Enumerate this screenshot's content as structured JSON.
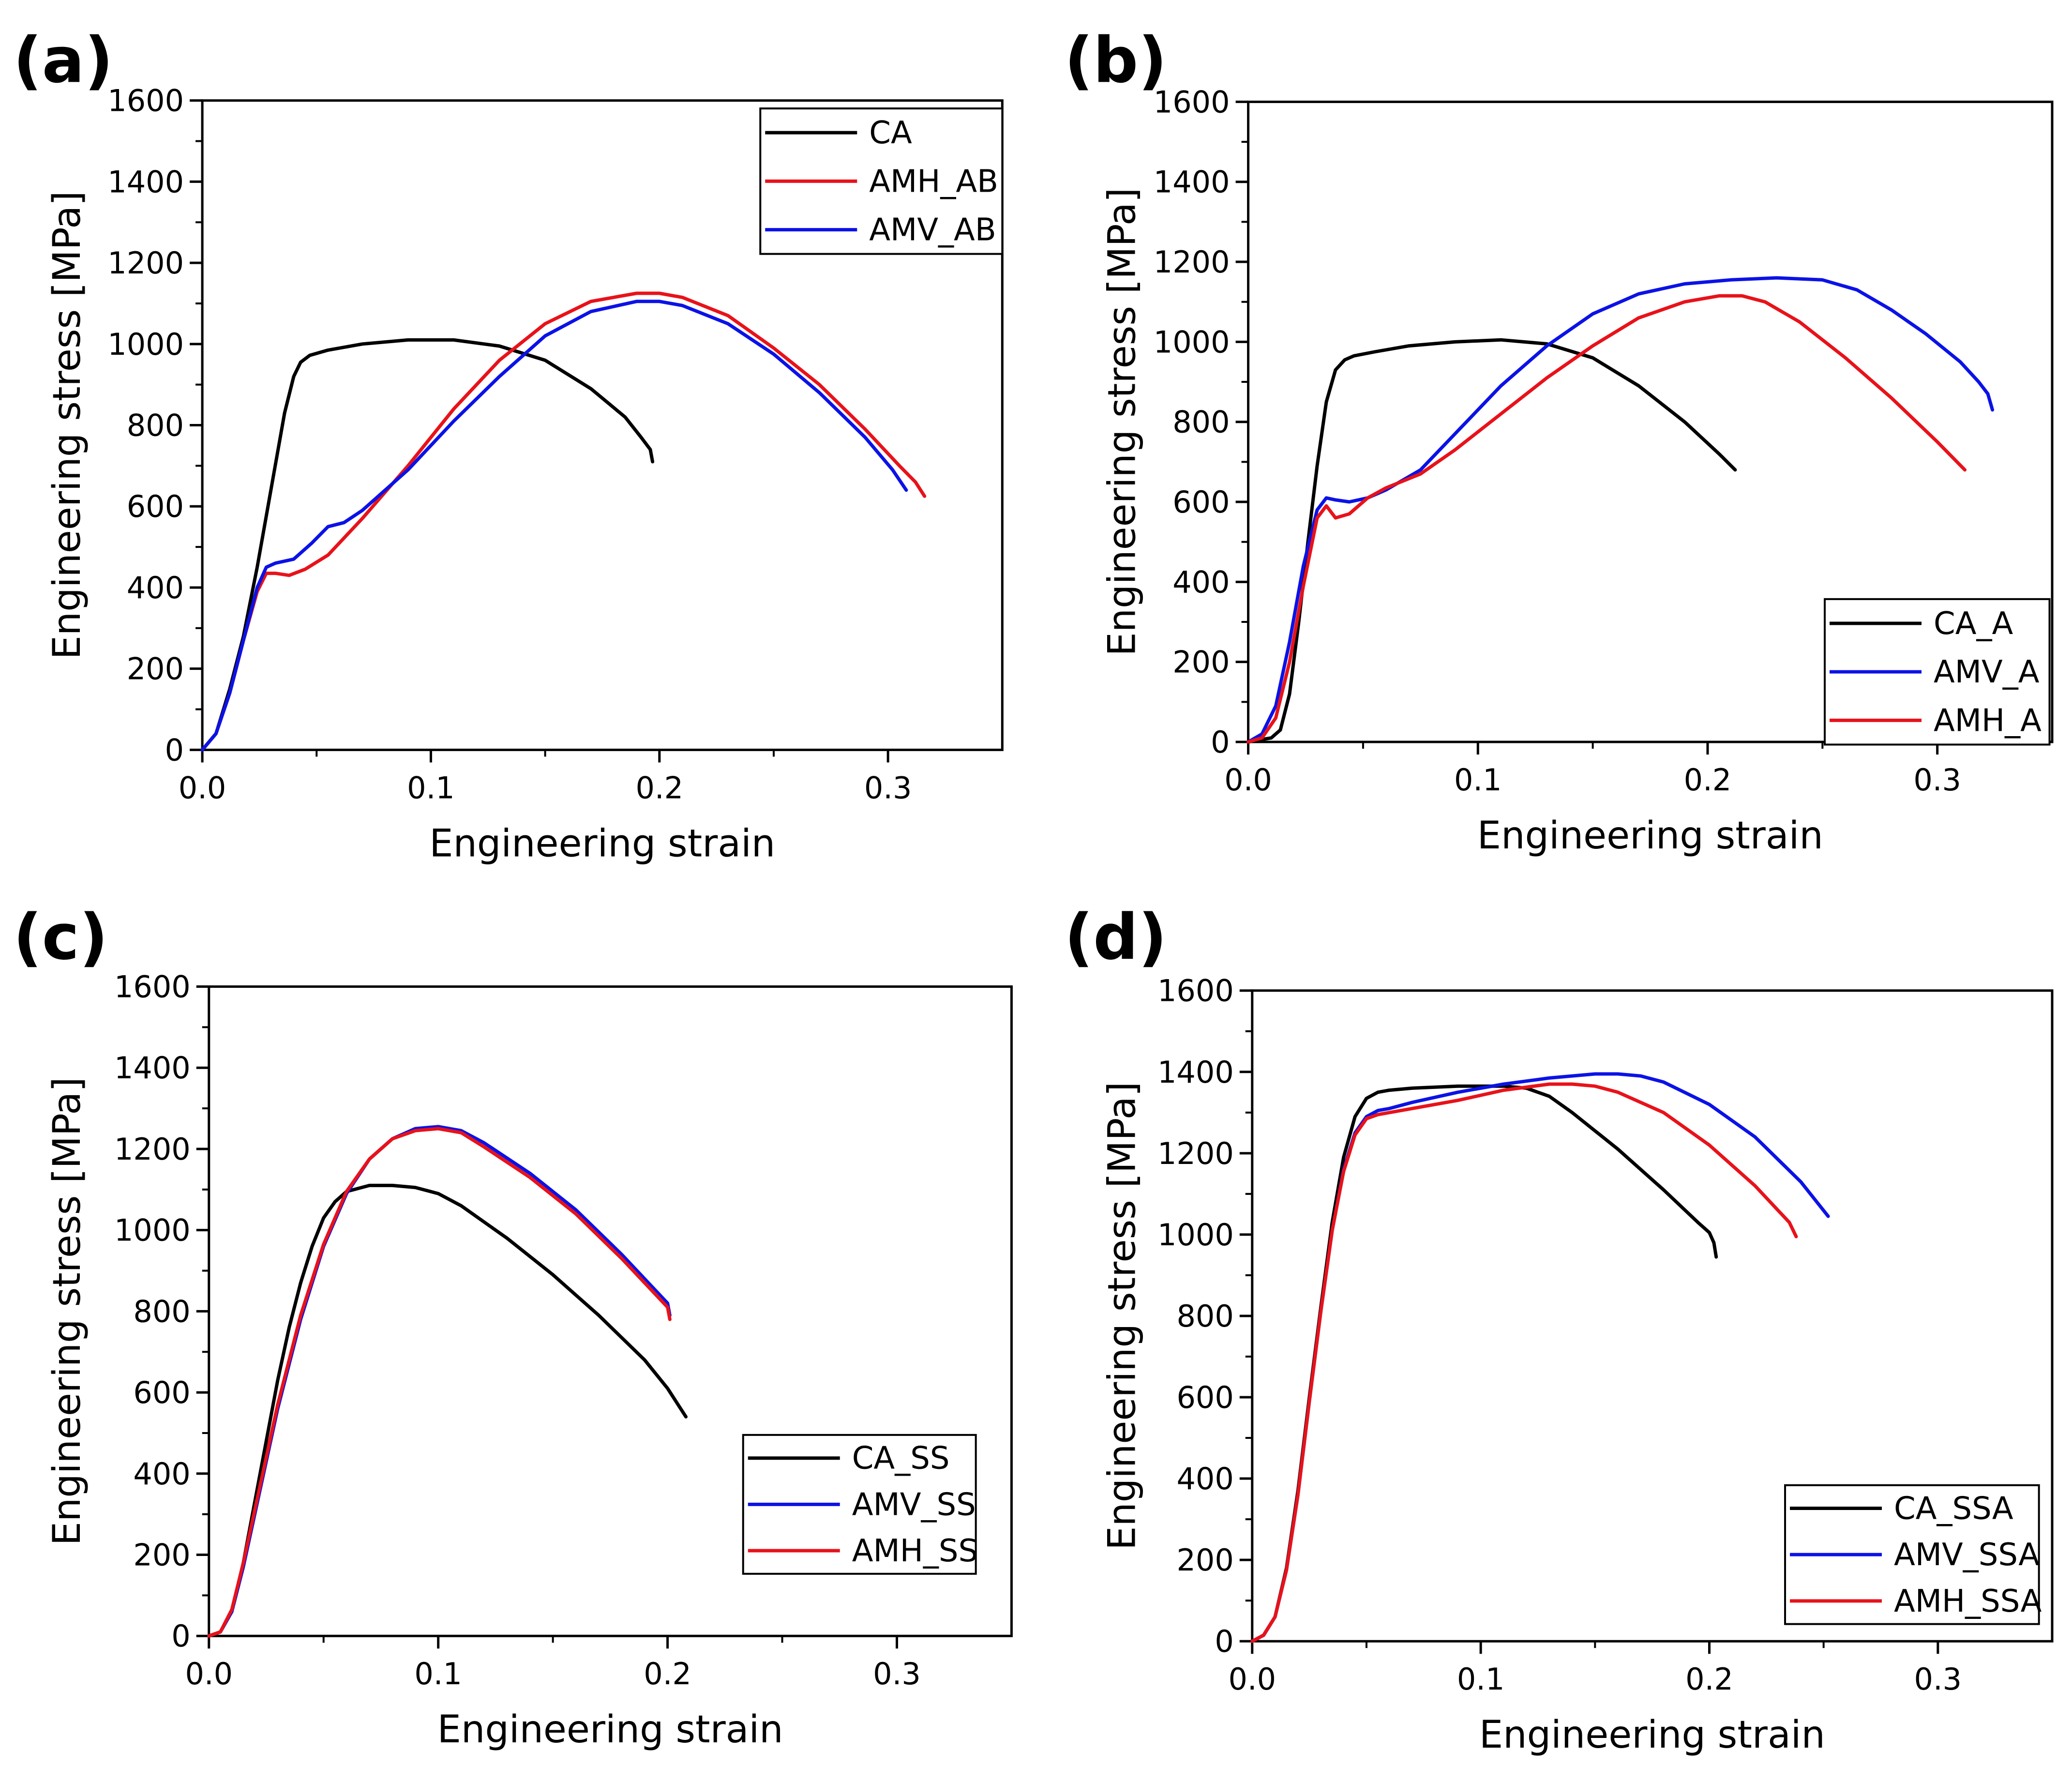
{
  "chart_data": [
    {
      "panel": "(a)",
      "type": "line",
      "xlabel": "Engineering strain",
      "ylabel": "Engineering stress [MPa]",
      "xlim": [
        0,
        0.35
      ],
      "ylim": [
        0,
        1600
      ],
      "xticks": [
        "0.0",
        "0.1",
        "0.2",
        "0.3"
      ],
      "yticks": [
        "0",
        "200",
        "400",
        "600",
        "800",
        "1000",
        "1200",
        "1400",
        "1600"
      ],
      "legend_position": "top-right",
      "series": [
        {
          "name": "CA",
          "color": "#000000",
          "x": [
            0,
            0.006,
            0.012,
            0.018,
            0.024,
            0.03,
            0.036,
            0.04,
            0.043,
            0.047,
            0.055,
            0.07,
            0.09,
            0.11,
            0.13,
            0.15,
            0.17,
            0.185,
            0.192,
            0.196,
            0.197
          ],
          "y": [
            0,
            40,
            150,
            280,
            450,
            640,
            830,
            920,
            955,
            972,
            985,
            1000,
            1010,
            1010,
            995,
            960,
            890,
            820,
            770,
            740,
            710
          ]
        },
        {
          "name": "AMH_AB",
          "color": "#e8121a",
          "x": [
            0,
            0.006,
            0.012,
            0.018,
            0.024,
            0.028,
            0.032,
            0.038,
            0.045,
            0.055,
            0.07,
            0.09,
            0.11,
            0.13,
            0.15,
            0.17,
            0.19,
            0.2,
            0.21,
            0.23,
            0.25,
            0.27,
            0.29,
            0.305,
            0.312,
            0.316
          ],
          "y": [
            0,
            40,
            140,
            270,
            390,
            435,
            435,
            430,
            445,
            480,
            570,
            700,
            840,
            960,
            1050,
            1105,
            1125,
            1125,
            1115,
            1070,
            990,
            900,
            790,
            700,
            660,
            625
          ]
        },
        {
          "name": "AMV_AB",
          "color": "#0b12e6",
          "x": [
            0,
            0.006,
            0.012,
            0.018,
            0.024,
            0.028,
            0.032,
            0.04,
            0.048,
            0.055,
            0.062,
            0.07,
            0.09,
            0.11,
            0.13,
            0.15,
            0.17,
            0.19,
            0.2,
            0.21,
            0.23,
            0.25,
            0.27,
            0.29,
            0.302,
            0.308
          ],
          "y": [
            0,
            40,
            140,
            270,
            400,
            450,
            460,
            470,
            510,
            550,
            560,
            590,
            690,
            810,
            920,
            1020,
            1080,
            1105,
            1105,
            1095,
            1050,
            975,
            880,
            770,
            690,
            640
          ]
        }
      ]
    },
    {
      "panel": "(b)",
      "type": "line",
      "xlabel": "Engineering strain",
      "ylabel": "Engineering stress [MPa]",
      "xlim": [
        0,
        0.35
      ],
      "ylim": [
        0,
        1600
      ],
      "xticks": [
        "0.0",
        "0.1",
        "0.2",
        "0.3"
      ],
      "yticks": [
        "0",
        "200",
        "400",
        "600",
        "800",
        "1000",
        "1200",
        "1400",
        "1600"
      ],
      "legend_position": "bottom-right",
      "series": [
        {
          "name": "CA_A",
          "color": "#000000",
          "x": [
            0,
            0.01,
            0.014,
            0.018,
            0.022,
            0.026,
            0.03,
            0.034,
            0.038,
            0.042,
            0.046,
            0.055,
            0.07,
            0.09,
            0.11,
            0.13,
            0.15,
            0.17,
            0.19,
            0.205,
            0.212
          ],
          "y": [
            0,
            10,
            30,
            120,
            300,
            500,
            690,
            850,
            930,
            955,
            965,
            975,
            990,
            1000,
            1005,
            995,
            960,
            890,
            800,
            720,
            680
          ]
        },
        {
          "name": "AMV_A",
          "color": "#0b12e6",
          "x": [
            0,
            0.006,
            0.012,
            0.018,
            0.024,
            0.03,
            0.034,
            0.038,
            0.044,
            0.052,
            0.06,
            0.075,
            0.09,
            0.11,
            0.13,
            0.15,
            0.17,
            0.19,
            0.21,
            0.23,
            0.25,
            0.265,
            0.28,
            0.295,
            0.31,
            0.318,
            0.322,
            0.324
          ],
          "y": [
            0,
            20,
            90,
            250,
            440,
            580,
            610,
            605,
            600,
            610,
            630,
            680,
            770,
            890,
            990,
            1070,
            1120,
            1145,
            1155,
            1160,
            1155,
            1130,
            1080,
            1020,
            950,
            900,
            870,
            830
          ]
        },
        {
          "name": "AMH_A",
          "color": "#e8121a",
          "x": [
            0,
            0.006,
            0.012,
            0.018,
            0.024,
            0.03,
            0.034,
            0.038,
            0.044,
            0.052,
            0.06,
            0.075,
            0.09,
            0.11,
            0.13,
            0.15,
            0.17,
            0.19,
            0.205,
            0.215,
            0.225,
            0.24,
            0.26,
            0.28,
            0.3,
            0.312
          ],
          "y": [
            0,
            10,
            60,
            200,
            390,
            560,
            590,
            560,
            570,
            610,
            635,
            670,
            730,
            820,
            910,
            990,
            1060,
            1100,
            1115,
            1115,
            1100,
            1050,
            960,
            860,
            750,
            680
          ]
        }
      ]
    },
    {
      "panel": "(c)",
      "type": "line",
      "xlabel": "Engineering strain",
      "ylabel": "Engineering stress [MPa]",
      "xlim": [
        0,
        0.35
      ],
      "ylim": [
        0,
        1600
      ],
      "xticks": [
        "0.0",
        "0.1",
        "0.2",
        "0.3"
      ],
      "yticks": [
        "0",
        "200",
        "400",
        "600",
        "800",
        "1000",
        "1200",
        "1400",
        "1600"
      ],
      "legend_position": "bottom-right",
      "series": [
        {
          "name": "CA_SS",
          "color": "#000000",
          "x": [
            0,
            0.005,
            0.01,
            0.015,
            0.02,
            0.025,
            0.03,
            0.035,
            0.04,
            0.045,
            0.05,
            0.055,
            0.06,
            0.07,
            0.08,
            0.09,
            0.1,
            0.11,
            0.13,
            0.15,
            0.17,
            0.19,
            0.2,
            0.208
          ],
          "y": [
            0,
            10,
            60,
            180,
            330,
            480,
            630,
            760,
            870,
            960,
            1030,
            1070,
            1095,
            1110,
            1110,
            1105,
            1090,
            1060,
            980,
            890,
            790,
            680,
            610,
            540
          ]
        },
        {
          "name": "AMV_SS",
          "color": "#0b12e6",
          "x": [
            0,
            0.005,
            0.01,
            0.015,
            0.02,
            0.03,
            0.04,
            0.05,
            0.06,
            0.07,
            0.08,
            0.09,
            0.1,
            0.11,
            0.12,
            0.14,
            0.16,
            0.18,
            0.195,
            0.2,
            0.201
          ],
          "y": [
            0,
            10,
            60,
            170,
            300,
            560,
            780,
            960,
            1090,
            1175,
            1225,
            1250,
            1255,
            1245,
            1215,
            1140,
            1050,
            940,
            850,
            820,
            790
          ]
        },
        {
          "name": "AMH_SS",
          "color": "#e8121a",
          "x": [
            0,
            0.005,
            0.01,
            0.015,
            0.02,
            0.03,
            0.04,
            0.05,
            0.06,
            0.07,
            0.08,
            0.09,
            0.1,
            0.11,
            0.12,
            0.14,
            0.16,
            0.18,
            0.195,
            0.2,
            0.201
          ],
          "y": [
            0,
            10,
            65,
            180,
            310,
            570,
            790,
            965,
            1095,
            1175,
            1225,
            1245,
            1250,
            1240,
            1205,
            1130,
            1040,
            930,
            840,
            810,
            780
          ]
        }
      ]
    },
    {
      "panel": "(d)",
      "type": "line",
      "xlabel": "Engineering strain",
      "ylabel": "Engineering stress [MPa]",
      "xlim": [
        0,
        0.35
      ],
      "ylim": [
        0,
        1600
      ],
      "xticks": [
        "0.0",
        "0.1",
        "0.2",
        "0.3"
      ],
      "yticks": [
        "0",
        "200",
        "400",
        "600",
        "800",
        "1000",
        "1200",
        "1400",
        "1600"
      ],
      "legend_position": "bottom-right",
      "series": [
        {
          "name": "CA_SSA",
          "color": "#000000",
          "x": [
            0,
            0.005,
            0.01,
            0.015,
            0.02,
            0.025,
            0.03,
            0.035,
            0.04,
            0.045,
            0.05,
            0.055,
            0.06,
            0.07,
            0.09,
            0.11,
            0.12,
            0.13,
            0.14,
            0.16,
            0.18,
            0.195,
            0.2,
            0.202,
            0.203
          ],
          "y": [
            0,
            15,
            60,
            180,
            370,
            600,
            820,
            1030,
            1190,
            1290,
            1335,
            1350,
            1355,
            1360,
            1365,
            1365,
            1360,
            1340,
            1300,
            1210,
            1110,
            1030,
            1005,
            980,
            945
          ]
        },
        {
          "name": "AMV_SSA",
          "color": "#0b12e6",
          "x": [
            0,
            0.005,
            0.01,
            0.015,
            0.02,
            0.025,
            0.03,
            0.035,
            0.04,
            0.045,
            0.05,
            0.055,
            0.06,
            0.07,
            0.09,
            0.11,
            0.13,
            0.15,
            0.16,
            0.17,
            0.18,
            0.2,
            0.22,
            0.24,
            0.252
          ],
          "y": [
            0,
            15,
            60,
            175,
            360,
            590,
            810,
            1010,
            1160,
            1250,
            1290,
            1305,
            1310,
            1325,
            1350,
            1370,
            1385,
            1395,
            1395,
            1390,
            1375,
            1320,
            1240,
            1130,
            1045
          ]
        },
        {
          "name": "AMH_SSA",
          "color": "#e8121a",
          "x": [
            0,
            0.005,
            0.01,
            0.015,
            0.02,
            0.025,
            0.03,
            0.035,
            0.04,
            0.045,
            0.05,
            0.055,
            0.06,
            0.07,
            0.09,
            0.11,
            0.13,
            0.14,
            0.15,
            0.16,
            0.18,
            0.2,
            0.22,
            0.235,
            0.238
          ],
          "y": [
            0,
            15,
            60,
            175,
            360,
            590,
            810,
            1010,
            1155,
            1245,
            1285,
            1295,
            1300,
            1310,
            1330,
            1355,
            1370,
            1370,
            1365,
            1350,
            1300,
            1220,
            1120,
            1030,
            995
          ]
        }
      ]
    }
  ]
}
